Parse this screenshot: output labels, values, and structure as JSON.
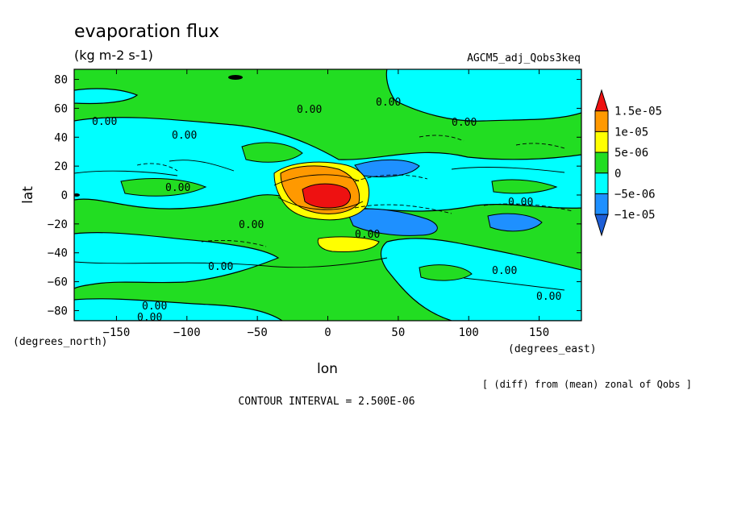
{
  "chart_data": {
    "type": "heatmap",
    "title": "evaporation flux",
    "units": "(kg m-2 s-1)",
    "dataset": "AGCM5_adj_Qobs3keq",
    "xlabel": "lon",
    "ylabel": "lat",
    "x_units": "(degrees_east)",
    "y_units": "(degrees_north)",
    "xlim": [
      -180,
      180
    ],
    "ylim": [
      -87,
      87
    ],
    "x_ticks": [
      -150,
      -100,
      -50,
      0,
      50,
      100,
      150
    ],
    "y_ticks": [
      80,
      60,
      40,
      20,
      0,
      -20,
      -40,
      -60,
      -80
    ],
    "note": "[ (diff) from (mean) zonal of Qobs ]",
    "contour_interval": "CONTOUR INTERVAL = 2.500E-06",
    "contour_label": "0.00",
    "colorbar": {
      "labels": [
        "1.5e-05",
        "1e-05",
        "5e-06",
        "0",
        "-5e-06",
        "-1e-05"
      ],
      "colors": [
        "#ee1111",
        "#ff9900",
        "#ffff00",
        "#22dd22",
        "#00ffff",
        "#1e90ff",
        "#1e5fd7"
      ]
    },
    "features": [
      {
        "lon": 0,
        "lat": 0,
        "value": 1.5e-05
      },
      {
        "lon": -15,
        "lat": 15,
        "value": 1e-05
      },
      {
        "lon": 10,
        "lat": -32,
        "value": 5e-06
      },
      {
        "lon": 55,
        "lat": -20,
        "value": -1e-05
      },
      {
        "lon": 50,
        "lat": 20,
        "value": -1e-05
      },
      {
        "lon": 125,
        "lat": -20,
        "value": -1e-05
      }
    ]
  }
}
